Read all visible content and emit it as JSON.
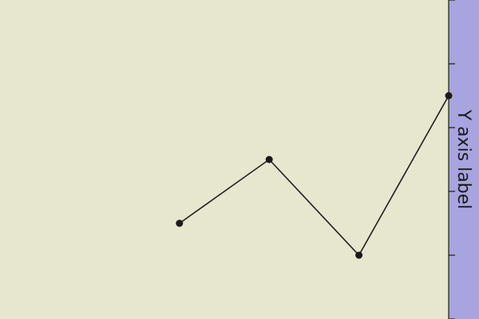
{
  "chart_data": {
    "type": "line",
    "x": [
      1,
      2,
      3,
      4
    ],
    "y": [
      3,
      5,
      2,
      7
    ],
    "xlim": [
      -1,
      4
    ],
    "ylim": [
      0,
      10
    ],
    "ylabel": "Y axis label",
    "grid": false,
    "colors": {
      "plot_background": "#e7e7cf",
      "axis_strip": "#a7a4df",
      "line": "#1f1f1f",
      "marker": "#1a1a1a",
      "tick": "#1a1a1a",
      "label_text": "#1a1a1a"
    }
  }
}
